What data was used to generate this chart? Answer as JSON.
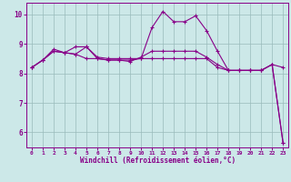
{
  "xlabel": "Windchill (Refroidissement éolien,°C)",
  "background_color": "#cce8e8",
  "line_color": "#880088",
  "grid_color": "#99bbbb",
  "xlim": [
    -0.5,
    23.5
  ],
  "ylim": [
    5.5,
    10.4
  ],
  "yticks": [
    6,
    7,
    8,
    9,
    10
  ],
  "xticks": [
    0,
    1,
    2,
    3,
    4,
    5,
    6,
    7,
    8,
    9,
    10,
    11,
    12,
    13,
    14,
    15,
    16,
    17,
    18,
    19,
    20,
    21,
    22,
    23
  ],
  "line1": [
    8.2,
    8.45,
    8.82,
    8.7,
    8.65,
    8.9,
    8.55,
    8.5,
    8.5,
    8.5,
    8.5,
    8.5,
    8.5,
    8.5,
    8.5,
    8.5,
    8.5,
    8.2,
    8.1,
    8.1,
    8.1,
    8.1,
    8.3,
    8.2
  ],
  "line2": [
    8.2,
    8.45,
    8.75,
    8.7,
    8.65,
    8.5,
    8.5,
    8.45,
    8.45,
    8.45,
    8.5,
    9.55,
    10.1,
    9.75,
    9.75,
    9.95,
    9.45,
    8.75,
    8.1,
    8.1,
    8.1,
    8.1,
    8.3,
    5.65
  ],
  "line3": [
    8.2,
    8.45,
    8.75,
    8.7,
    8.9,
    8.9,
    8.5,
    8.45,
    8.45,
    8.4,
    8.55,
    8.75,
    8.75,
    8.75,
    8.75,
    8.75,
    8.55,
    8.3,
    8.1,
    8.1,
    8.1,
    8.1,
    8.3,
    5.65
  ]
}
